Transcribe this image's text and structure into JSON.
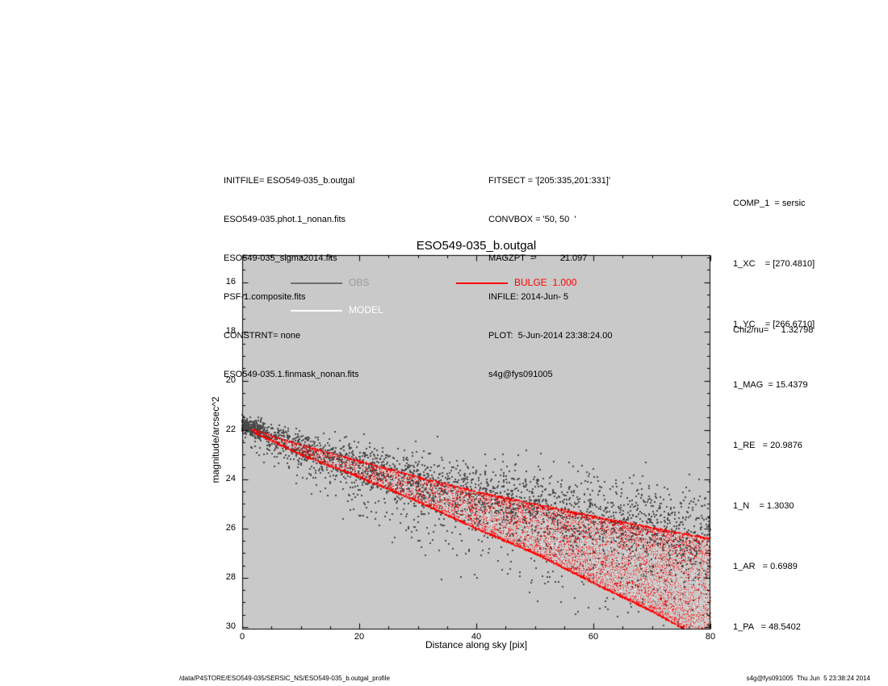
{
  "header": {
    "left_lines": [
      "INITFILE= ESO549-035_b.outgal",
      "ESO549-035.phot.1_nonan.fits",
      "ESO549-035_sigma2014.fits",
      "PSF-1.composite.fits",
      "CONSTRNT= none",
      "ESO549-035.1.finmask_nonan.fits"
    ],
    "mid_lines": [
      "FITSECT = '[205:335,201:331]'",
      "CONVBOX = '50, 50  '",
      "MAGZPT  =          21.097",
      "INFILE: 2014-Jun- 5",
      "PLOT:  5-Jun-2014 23:38:24.00",
      "s4g@fys091005"
    ],
    "right_lines": [
      "COMP_1  = sersic",
      "1_XC    = [270.4810]",
      "1_YC    = [266.6710]",
      "1_MAG  = 15.4379",
      "1_RE   = 20.9876",
      "1_N    = 1.3030",
      "1_AR   = 0.6989",
      "1_PA   = 48.5402"
    ],
    "chi2_line": "Chi2/nu=     1.32798"
  },
  "footer": {
    "left": "/data/P4STORE/ESO549-035/SERSIC_NS/ESO549-035_b.outgal_profile",
    "right": "s4g@fys091005  Thu Jun  5 23:38:24 2014"
  },
  "chart_data": {
    "type": "scatter",
    "title": "ESO549-035_b.outgal",
    "xlabel": "Distance along sky [pix]",
    "ylabel": "magnitude/arcsec^2",
    "xlim": [
      0,
      80
    ],
    "ylim": [
      14.9,
      30.1
    ],
    "y_axis_inverted": true,
    "x_ticks": [
      0,
      20,
      40,
      60,
      80
    ],
    "y_ticks": [
      16,
      18,
      20,
      22,
      24,
      26,
      28,
      30
    ],
    "grid": false,
    "plot_background": "#c9c9c9",
    "legend_position": "inside-top",
    "legend": [
      {
        "label": "OBS",
        "color": "#6e6e6e",
        "text_color": "#9a9a9a"
      },
      {
        "label": "MODEL",
        "color": "#ffffff",
        "text_color": "#ffffff"
      },
      {
        "label": "BULGE  1.000",
        "color": "#ff0000",
        "text_color": "#ff0000"
      }
    ],
    "series": [
      {
        "name": "OBS",
        "color": "#4a4a4a",
        "marker_px": 2,
        "n_points": 3000,
        "trend": [
          [
            0,
            21.8
          ],
          [
            10,
            22.7
          ],
          [
            20,
            23.45
          ],
          [
            30,
            24.1
          ],
          [
            40,
            24.6
          ],
          [
            50,
            25.1
          ],
          [
            60,
            25.6
          ],
          [
            70,
            26.05
          ],
          [
            80,
            26.5
          ]
        ],
        "spread": [
          [
            0,
            0.12
          ],
          [
            10,
            0.35
          ],
          [
            40,
            0.65
          ],
          [
            80,
            1.0
          ]
        ],
        "faint_tail_fraction": 0.25,
        "tail_amplitude": [
          [
            0,
            0.8
          ],
          [
            40,
            3.0
          ],
          [
            80,
            4.2
          ]
        ],
        "center_clump": {
          "n": 180,
          "r_max": 4,
          "mu": 21.85,
          "sigma": 0.15
        }
      },
      {
        "name": "MODEL",
        "color": "#ffffff",
        "marker_px": 1,
        "n_points": 1500
      },
      {
        "name": "BULGE",
        "color": "#ff0000",
        "marker_px": 1,
        "n_band_points": 7000,
        "n_lower_edge_points": 2600,
        "n_upper_edge_points": 1400,
        "upper_envelope": [
          [
            0,
            21.85
          ],
          [
            10,
            22.6
          ],
          [
            20,
            23.25
          ],
          [
            30,
            23.9
          ],
          [
            40,
            24.5
          ],
          [
            50,
            25.0
          ],
          [
            60,
            25.5
          ],
          [
            70,
            25.95
          ],
          [
            80,
            26.4
          ]
        ],
        "lower_envelope": [
          [
            0,
            21.85
          ],
          [
            10,
            23.0
          ],
          [
            20,
            23.9
          ],
          [
            30,
            24.9
          ],
          [
            40,
            26.0
          ],
          [
            50,
            27.0
          ],
          [
            60,
            28.2
          ],
          [
            70,
            29.35
          ],
          [
            75,
            30.0
          ],
          [
            80,
            30.7
          ]
        ]
      }
    ]
  }
}
